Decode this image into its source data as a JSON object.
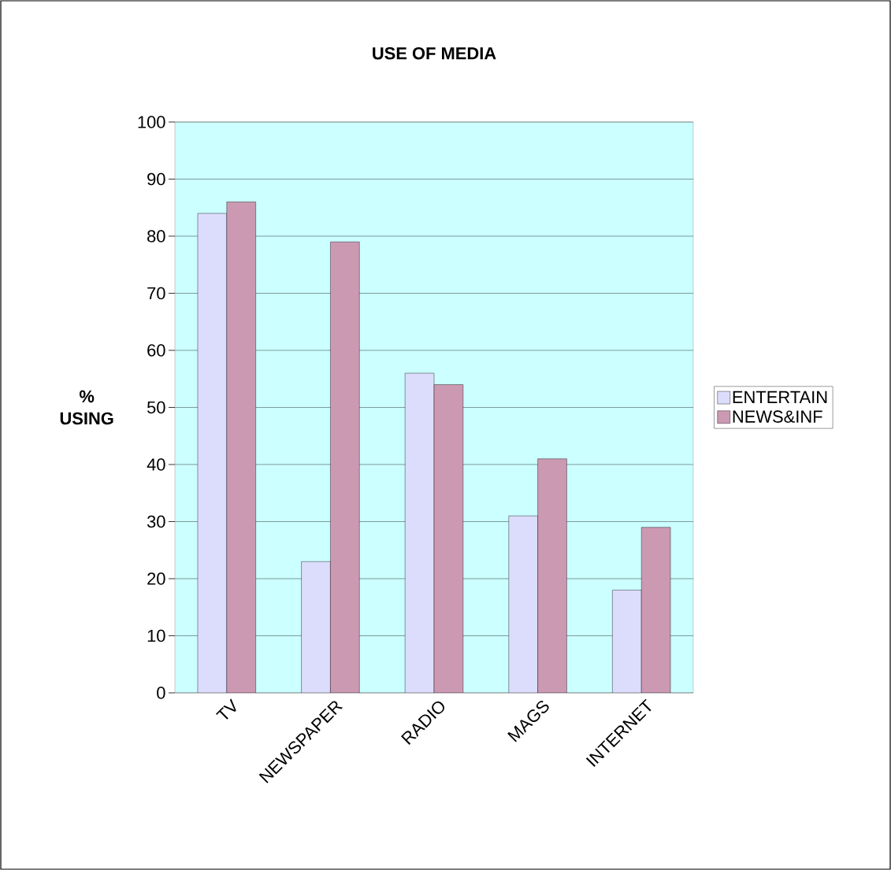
{
  "chart_data": {
    "type": "bar",
    "title": "USE OF MEDIA",
    "ylabel": "% USING",
    "categories": [
      "TV",
      "NEWSPAPER",
      "RADIO",
      "MAGS",
      "INTERNET"
    ],
    "series": [
      {
        "name": "ENTERTAIN",
        "color": "#dcdcfc",
        "values": [
          84,
          23,
          56,
          31,
          18
        ]
      },
      {
        "name": "NEWS&INF",
        "color": "#cc99b2",
        "values": [
          86,
          79,
          54,
          41,
          29
        ]
      }
    ],
    "ylim": [
      0,
      100
    ],
    "yticks": [
      0,
      10,
      20,
      30,
      40,
      50,
      60,
      70,
      80,
      90,
      100
    ],
    "grid": "y",
    "legend": "right"
  }
}
